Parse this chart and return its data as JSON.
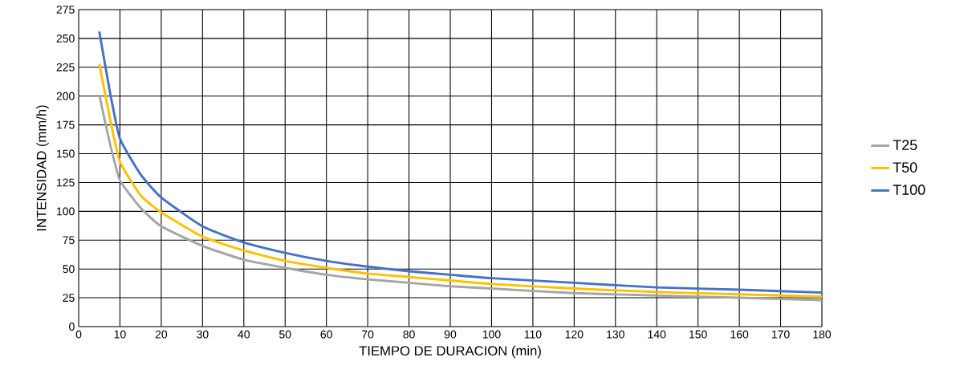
{
  "chart_data": {
    "type": "line",
    "xlabel": "TIEMPO DE DURACION (min)",
    "ylabel": "INTENSIDAD (mm/h)",
    "x": [
      5,
      7.5,
      10,
      15,
      20,
      30,
      40,
      50,
      60,
      70,
      80,
      90,
      100,
      120,
      140,
      160,
      180
    ],
    "series": [
      {
        "name": "T25",
        "color": "#a5a5a5",
        "values": [
          201,
          160,
          127,
          103,
          87,
          70,
          58,
          51,
          45,
          41,
          38,
          35,
          33,
          29,
          27,
          25,
          23
        ]
      },
      {
        "name": "T50",
        "color": "#ffc000",
        "values": [
          228,
          182,
          143,
          114,
          99,
          78,
          66,
          57,
          51,
          46,
          43,
          40,
          37,
          33,
          30,
          28,
          26
        ]
      },
      {
        "name": "T100",
        "color": "#4472c4",
        "values": [
          256,
          205,
          163,
          132,
          112,
          87,
          73,
          64,
          57,
          52,
          48,
          45,
          42,
          38,
          34,
          32,
          29.5
        ]
      }
    ],
    "xlim": [
      0,
      180
    ],
    "xticks": [
      0,
      10,
      20,
      30,
      40,
      50,
      60,
      70,
      80,
      90,
      100,
      110,
      120,
      130,
      140,
      150,
      160,
      170,
      180
    ],
    "ylim": [
      0,
      275
    ],
    "yticks": [
      0,
      25,
      50,
      75,
      100,
      125,
      150,
      175,
      200,
      225,
      250,
      275
    ],
    "grid": true,
    "legend": "right",
    "marker": "none",
    "line_style": "solid"
  }
}
